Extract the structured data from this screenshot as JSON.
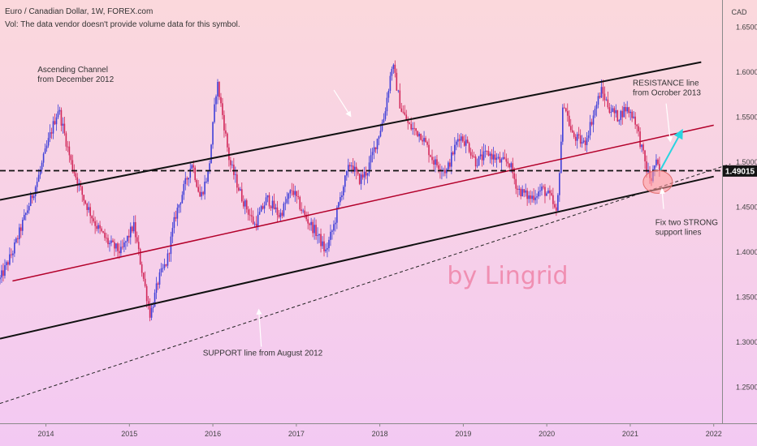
{
  "header": {
    "title": "Euro / Canadian Dollar, 1W, FOREX.com",
    "volume_note": "Vol: The data vendor doesn't provide volume data for this symbol."
  },
  "chart_data": {
    "type": "candlestick",
    "currency": "CAD",
    "ylim": [
      1.21,
      1.68
    ],
    "xlim": [
      2013.45,
      2022.1
    ],
    "y_ticks": [
      "1.65000",
      "1.60000",
      "1.55000",
      "1.50000",
      "1.45000",
      "1.40000",
      "1.35000",
      "1.30000",
      "1.25000"
    ],
    "y_tick_values": [
      1.65,
      1.6,
      1.55,
      1.5,
      1.45,
      1.4,
      1.35,
      1.3,
      1.25
    ],
    "x_ticks": [
      "2014",
      "2015",
      "2016",
      "2017",
      "2018",
      "2019",
      "2020",
      "2021",
      "2022"
    ],
    "x_tick_values": [
      2014,
      2015,
      2016,
      2017,
      2018,
      2019,
      2020,
      2021,
      2022
    ],
    "last_price": "1.49015",
    "last_price_value": 1.49015,
    "colors": {
      "up": "#3f3fd8",
      "down": "#d2285a",
      "background_top": "#fbd8dc",
      "background_bottom": "#f3c9f3"
    },
    "price_path": [
      [
        2013.45,
        1.37
      ],
      [
        2013.6,
        1.4
      ],
      [
        2013.75,
        1.44
      ],
      [
        2013.9,
        1.48
      ],
      [
        2014.05,
        1.53
      ],
      [
        2014.15,
        1.56
      ],
      [
        2014.3,
        1.5
      ],
      [
        2014.45,
        1.46
      ],
      [
        2014.6,
        1.43
      ],
      [
        2014.75,
        1.41
      ],
      [
        2014.9,
        1.4
      ],
      [
        2015.05,
        1.43
      ],
      [
        2015.15,
        1.38
      ],
      [
        2015.25,
        1.33
      ],
      [
        2015.35,
        1.37
      ],
      [
        2015.45,
        1.39
      ],
      [
        2015.55,
        1.44
      ],
      [
        2015.65,
        1.47
      ],
      [
        2015.75,
        1.5
      ],
      [
        2015.85,
        1.46
      ],
      [
        2015.95,
        1.49
      ],
      [
        2016.05,
        1.59
      ],
      [
        2016.12,
        1.55
      ],
      [
        2016.2,
        1.5
      ],
      [
        2016.35,
        1.46
      ],
      [
        2016.5,
        1.43
      ],
      [
        2016.65,
        1.46
      ],
      [
        2016.8,
        1.44
      ],
      [
        2016.95,
        1.47
      ],
      [
        2017.1,
        1.44
      ],
      [
        2017.25,
        1.42
      ],
      [
        2017.35,
        1.4
      ],
      [
        2017.45,
        1.43
      ],
      [
        2017.55,
        1.47
      ],
      [
        2017.65,
        1.5
      ],
      [
        2017.75,
        1.48
      ],
      [
        2017.85,
        1.49
      ],
      [
        2017.95,
        1.52
      ],
      [
        2018.05,
        1.55
      ],
      [
        2018.15,
        1.61
      ],
      [
        2018.25,
        1.56
      ],
      [
        2018.35,
        1.54
      ],
      [
        2018.5,
        1.53
      ],
      [
        2018.65,
        1.5
      ],
      [
        2018.8,
        1.49
      ],
      [
        2018.95,
        1.53
      ],
      [
        2019.05,
        1.52
      ],
      [
        2019.15,
        1.5
      ],
      [
        2019.3,
        1.51
      ],
      [
        2019.45,
        1.5
      ],
      [
        2019.55,
        1.5
      ],
      [
        2019.65,
        1.47
      ],
      [
        2019.8,
        1.46
      ],
      [
        2019.95,
        1.47
      ],
      [
        2020.05,
        1.46
      ],
      [
        2020.12,
        1.44
      ],
      [
        2020.2,
        1.57
      ],
      [
        2020.3,
        1.53
      ],
      [
        2020.45,
        1.52
      ],
      [
        2020.55,
        1.55
      ],
      [
        2020.65,
        1.58
      ],
      [
        2020.75,
        1.56
      ],
      [
        2020.85,
        1.55
      ],
      [
        2020.95,
        1.56
      ],
      [
        2021.05,
        1.55
      ],
      [
        2021.15,
        1.51
      ],
      [
        2021.2,
        1.49
      ],
      [
        2021.25,
        1.48
      ],
      [
        2021.3,
        1.5
      ],
      [
        2021.35,
        1.49
      ]
    ],
    "lines": [
      {
        "name": "upper-channel-line",
        "from": [
          2013.45,
          1.458
        ],
        "to": [
          2021.85,
          1.611
        ],
        "color": "#111111",
        "width": 2,
        "dash": ""
      },
      {
        "name": "resistance-line",
        "from": [
          2013.6,
          1.368
        ],
        "to": [
          2022.0,
          1.541
        ],
        "color": "#b3002a",
        "width": 1.5,
        "dash": ""
      },
      {
        "name": "lower-channel-line",
        "from": [
          2013.45,
          1.304
        ],
        "to": [
          2022.0,
          1.484
        ],
        "color": "#111111",
        "width": 2,
        "dash": ""
      },
      {
        "name": "support-line-august-2012",
        "from": [
          2013.45,
          1.232
        ],
        "to": [
          2022.2,
          1.498
        ],
        "color": "#222222",
        "width": 1,
        "dash": "4 3"
      },
      {
        "name": "horizontal-level-line",
        "from": [
          2013.45,
          1.4905
        ],
        "to": [
          2022.1,
          1.4905
        ],
        "color": "#111111",
        "width": 1.8,
        "dash": "7 4"
      }
    ],
    "annotations": [
      {
        "name": "ascending-channel-label",
        "lines": [
          "Ascending Channel",
          "from December 2012"
        ],
        "at": [
          2013.9,
          1.6
        ]
      },
      {
        "name": "resistance-label",
        "lines": [
          "RESISTANCE line",
          "from Ocrober 2013"
        ],
        "at": [
          2021.03,
          1.585
        ]
      },
      {
        "name": "support-strong-label",
        "lines": [
          "Fix two STRONG",
          "support lines"
        ],
        "at": [
          2021.3,
          1.43
        ]
      },
      {
        "name": "support-august-label",
        "lines": [
          "SUPPORT line from August 2012"
        ],
        "at": [
          2015.88,
          1.285
        ]
      }
    ],
    "arrows": [
      {
        "name": "channel-arrow",
        "from": [
          2017.45,
          1.58
        ],
        "to": [
          2017.65,
          1.551
        ],
        "color": "#ffffff"
      },
      {
        "name": "resistance-arrow",
        "from": [
          2021.43,
          1.565
        ],
        "to": [
          2021.48,
          1.523
        ],
        "color": "#ffffff"
      },
      {
        "name": "support-strong-arrow",
        "from": [
          2021.4,
          1.448
        ],
        "to": [
          2021.38,
          1.47
        ],
        "color": "#ffffff"
      },
      {
        "name": "support-august-arrow",
        "from": [
          2016.58,
          1.295
        ],
        "to": [
          2016.55,
          1.336
        ],
        "color": "#ffffff"
      },
      {
        "name": "forecast-arrow",
        "from": [
          2021.36,
          1.491
        ],
        "to": [
          2021.62,
          1.535
        ],
        "color": "#29d4e0"
      }
    ],
    "highlight": {
      "name": "support-zone-circle",
      "at": [
        2021.33,
        1.478
      ],
      "color": "#ff9a9a"
    },
    "watermark": "by Lingrid"
  }
}
